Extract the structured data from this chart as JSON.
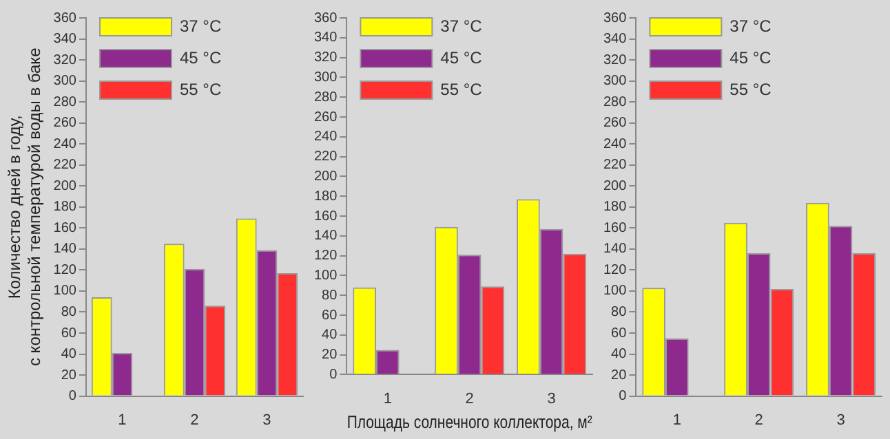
{
  "chart_data": [
    {
      "type": "bar",
      "ylabel": "Количество дней в году,\nс контрольной температурой воды в баке",
      "categories": [
        "1",
        "2",
        "3"
      ],
      "series": [
        {
          "name": "37 °C",
          "color": "#ffff00",
          "values": [
            94,
            145,
            169
          ]
        },
        {
          "name": "45 °C",
          "color": "#8e2a8e",
          "values": [
            41,
            121,
            139
          ]
        },
        {
          "name": "55 °C",
          "color": "#ff3030",
          "values": [
            0,
            86,
            117
          ]
        }
      ],
      "ylim": [
        0,
        360
      ],
      "yticks": [
        0,
        20,
        40,
        60,
        80,
        100,
        120,
        140,
        160,
        180,
        200,
        220,
        240,
        260,
        280,
        300,
        320,
        340,
        360
      ],
      "grid": false,
      "legend": "top left"
    },
    {
      "type": "bar",
      "xlabel": "Площадь солнечного коллектора, м²",
      "categories": [
        "1",
        "2",
        "3"
      ],
      "series": [
        {
          "name": "37 °C",
          "color": "#ffff00",
          "values": [
            88,
            149,
            177
          ]
        },
        {
          "name": "45 °C",
          "color": "#8e2a8e",
          "values": [
            25,
            121,
            147
          ]
        },
        {
          "name": "55 °C",
          "color": "#ff3030",
          "values": [
            0,
            89,
            122
          ]
        }
      ],
      "ylim": [
        0,
        360
      ],
      "yticks": [
        0,
        20,
        40,
        60,
        80,
        100,
        120,
        140,
        160,
        180,
        200,
        220,
        240,
        260,
        280,
        300,
        320,
        340,
        360
      ],
      "grid": false,
      "legend": "top left"
    },
    {
      "type": "bar",
      "categories": [
        "1",
        "2",
        "3"
      ],
      "series": [
        {
          "name": "37 °C",
          "color": "#ffff00",
          "values": [
            103,
            165,
            184
          ]
        },
        {
          "name": "45 °C",
          "color": "#8e2a8e",
          "values": [
            55,
            136,
            162
          ]
        },
        {
          "name": "55 °C",
          "color": "#ff3030",
          "values": [
            0,
            102,
            136
          ]
        }
      ],
      "ylim": [
        0,
        360
      ],
      "yticks": [
        0,
        20,
        40,
        60,
        80,
        100,
        120,
        140,
        160,
        180,
        200,
        220,
        240,
        260,
        280,
        300,
        320,
        340,
        360
      ],
      "grid": false,
      "legend": "top left"
    }
  ]
}
